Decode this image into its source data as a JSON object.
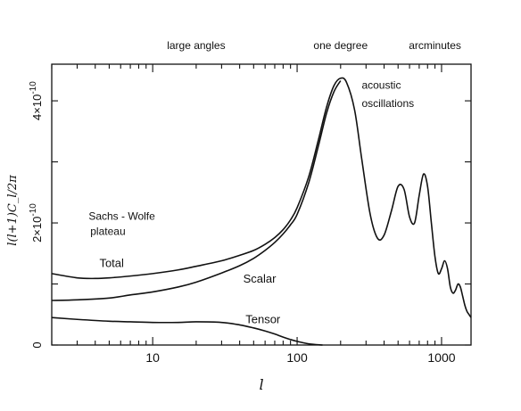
{
  "chart_data": {
    "type": "line",
    "title": "",
    "xlabel": "l",
    "ylabel": "l(l+1)C_l/2π",
    "x_scale": "log",
    "xlim": [
      2,
      1600
    ],
    "ylim": [
      0,
      4.6e-10
    ],
    "x_ticks": [
      {
        "value": 10,
        "label": "10"
      },
      {
        "value": 100,
        "label": "100"
      },
      {
        "value": 1000,
        "label": "1000"
      }
    ],
    "y_ticks": [
      {
        "value": 0,
        "label": "0"
      },
      {
        "value": 2e-10,
        "label": "2×10^-10"
      },
      {
        "value": 4e-10,
        "label": "4×10^-10"
      }
    ],
    "top_labels": [
      {
        "text": "large angles",
        "x": 20
      },
      {
        "text": "one degree",
        "x": 200
      },
      {
        "text": "arcminutes",
        "x": 900
      }
    ],
    "annotations": [
      {
        "text": "acoustic",
        "x": 280,
        "y": 4.2e-10
      },
      {
        "text": "oscillations",
        "x": 280,
        "y": 3.9e-10
      },
      {
        "text": "Sachs - Wolfe",
        "x": 3.6,
        "y": 2.05e-10
      },
      {
        "text": "plateau",
        "x": 3.7,
        "y": 1.8e-10
      }
    ],
    "series": [
      {
        "name": "Total",
        "x": [
          2,
          3,
          4,
          5,
          7,
          10,
          15,
          20,
          30,
          40,
          50,
          60,
          70,
          80,
          90,
          100,
          120,
          140,
          160,
          180,
          200,
          220,
          250,
          280,
          320,
          360,
          400,
          450,
          500,
          550,
          600,
          650,
          700,
          750,
          800,
          850,
          900,
          950,
          1000,
          1050,
          1100,
          1150,
          1200,
          1250,
          1300,
          1350,
          1400,
          1450,
          1500,
          1550,
          1600
        ],
        "y": [
          1.17e-10,
          1.1e-10,
          1.09e-10,
          1.1e-10,
          1.13e-10,
          1.17e-10,
          1.23e-10,
          1.29e-10,
          1.38e-10,
          1.47e-10,
          1.55e-10,
          1.65e-10,
          1.76e-10,
          1.89e-10,
          2.05e-10,
          2.25e-10,
          2.75e-10,
          3.35e-10,
          3.9e-10,
          4.25e-10,
          4.37e-10,
          4.3e-10,
          3.85e-10,
          3.05e-10,
          2.15e-10,
          1.75e-10,
          1.8e-10,
          2.2e-10,
          2.6e-10,
          2.55e-10,
          2.1e-10,
          2e-10,
          2.45e-10,
          2.8e-10,
          2.6e-10,
          2e-10,
          1.45e-10,
          1.17e-10,
          1.25e-10,
          1.38e-10,
          1.25e-10,
          9.5e-11,
          8.5e-11,
          9e-11,
          1e-10,
          9.5e-11,
          8e-11,
          6.5e-11,
          5.5e-11,
          5e-11,
          4.5e-11
        ]
      },
      {
        "name": "Scalar",
        "x": [
          2,
          3,
          5,
          7,
          10,
          15,
          20,
          30,
          40,
          50,
          60,
          70,
          80,
          90,
          100,
          120,
          140,
          160,
          180,
          200
        ],
        "y": [
          7.3e-11,
          7.4e-11,
          7.7e-11,
          8.2e-11,
          8.7e-11,
          9.5e-11,
          1.03e-10,
          1.18e-10,
          1.3e-10,
          1.42e-10,
          1.55e-10,
          1.68e-10,
          1.82e-10,
          1.97e-10,
          2.14e-10,
          2.65e-10,
          3.25e-10,
          3.8e-10,
          4.15e-10,
          4.33e-10
        ]
      },
      {
        "name": "Tensor",
        "x": [
          2,
          3,
          5,
          7,
          10,
          15,
          20,
          30,
          40,
          50,
          60,
          70,
          80,
          90,
          100,
          120,
          150
        ],
        "y": [
          4.5e-11,
          4.2e-11,
          3.9e-11,
          3.8e-11,
          3.7e-11,
          3.7e-11,
          3.8e-11,
          3.7e-11,
          3.3e-11,
          2.8e-11,
          2.3e-11,
          1.8e-11,
          1.3e-11,
          9e-12,
          6e-12,
          2e-12,
          0.0
        ]
      }
    ],
    "series_labels": [
      {
        "text": "Total",
        "x": 5.2,
        "y": 1.28e-10
      },
      {
        "text": "Scalar",
        "x": 55,
        "y": 1.02e-10
      },
      {
        "text": "Tensor",
        "x": 58,
        "y": 3.6e-11
      }
    ]
  }
}
